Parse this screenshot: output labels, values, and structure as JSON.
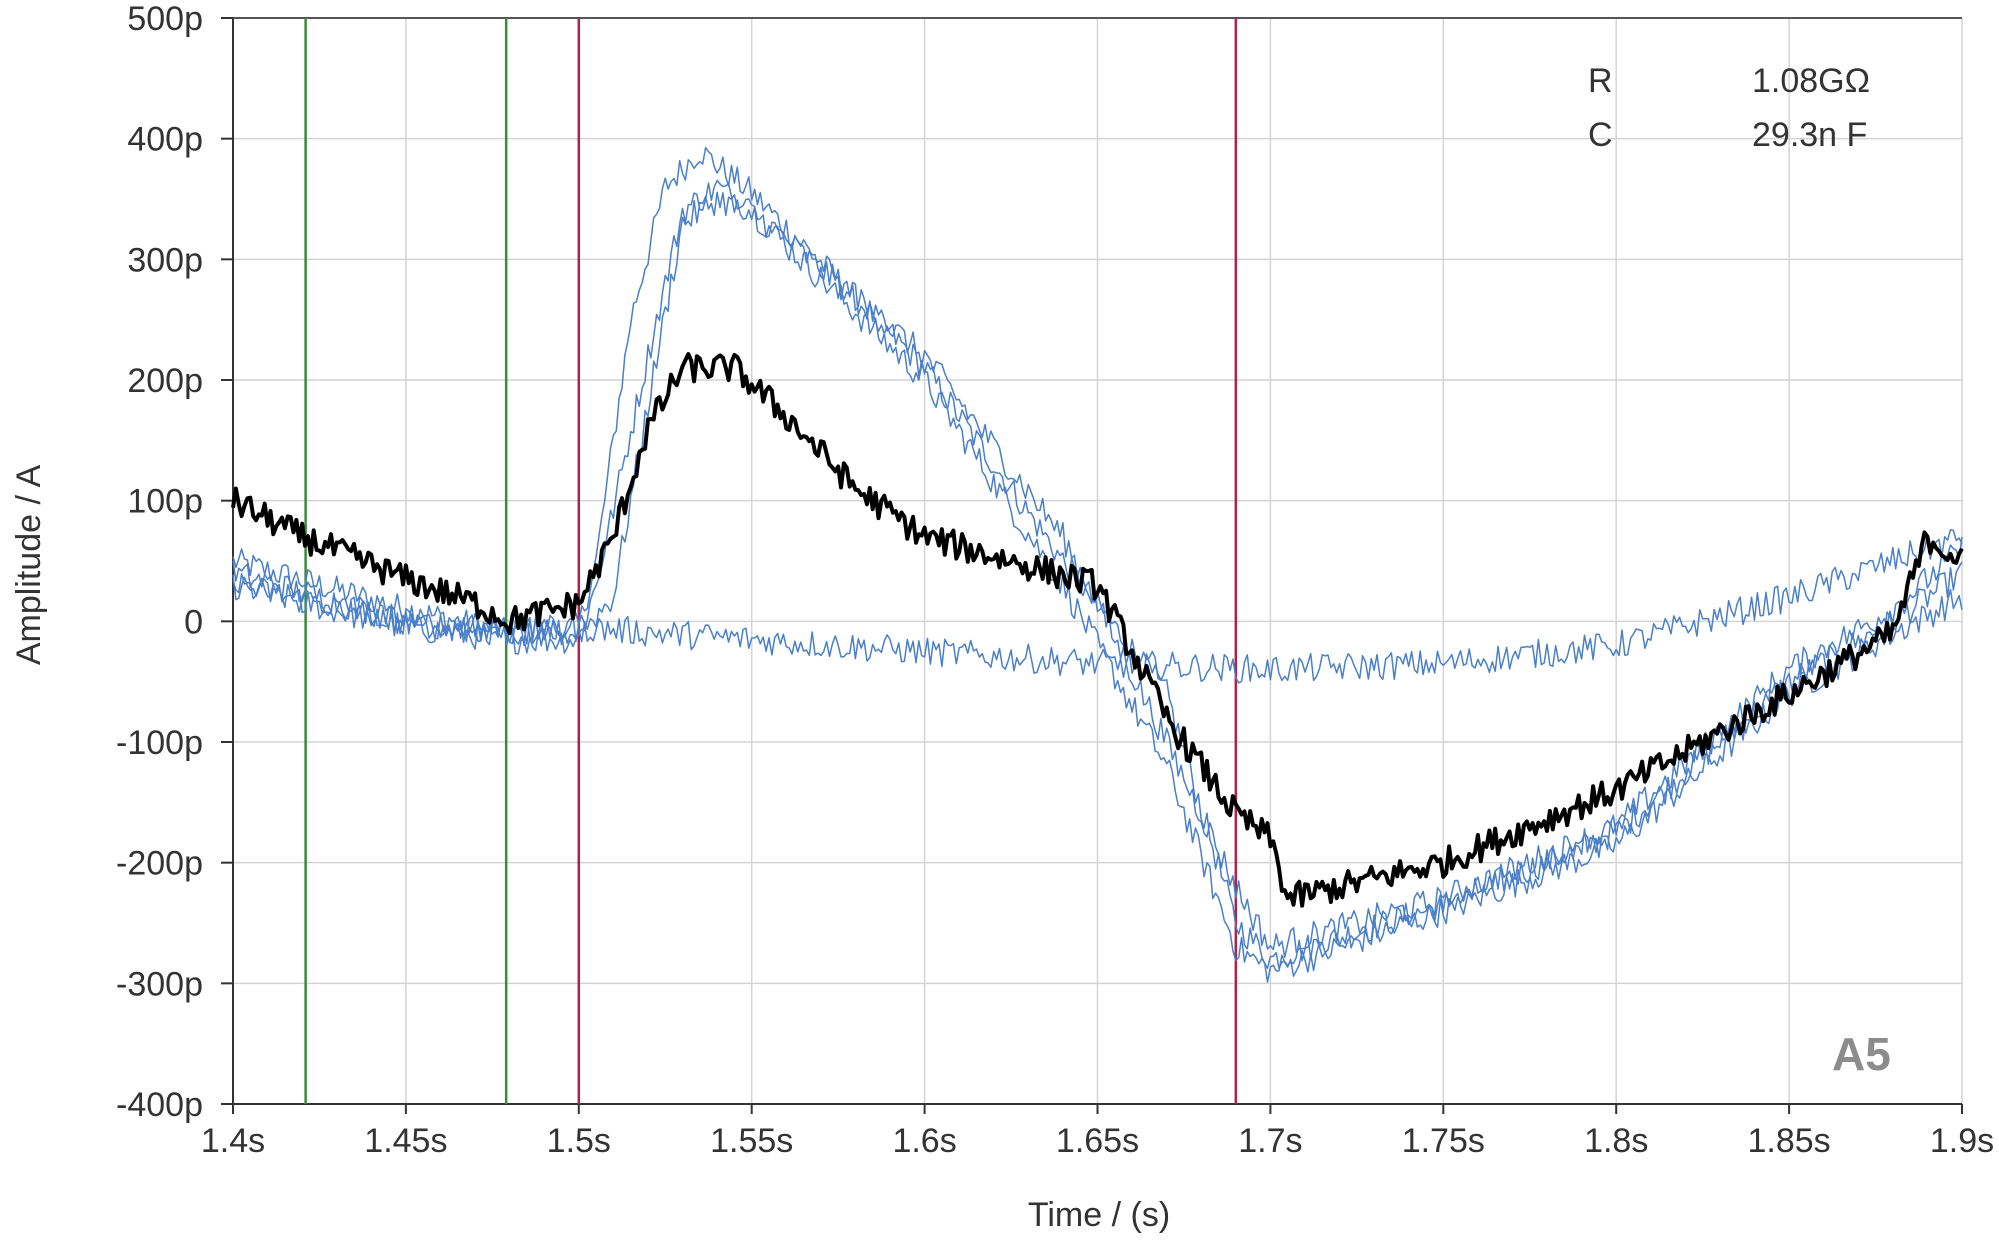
{
  "chart_data": {
    "type": "line",
    "xlabel": "Time / (s)",
    "ylabel": "Amplitude / A",
    "xlim": [
      1.4,
      1.9
    ],
    "ylim": [
      -4e-10,
      5e-10
    ],
    "x_ticks": [
      1.4,
      1.45,
      1.5,
      1.55,
      1.6,
      1.65,
      1.7,
      1.75,
      1.8,
      1.85,
      1.9
    ],
    "x_tick_labels": [
      "1.4s",
      "1.45s",
      "1.5s",
      "1.55s",
      "1.6s",
      "1.65s",
      "1.7s",
      "1.75s",
      "1.8s",
      "1.85s",
      "1.9s"
    ],
    "y_ticks": [
      5e-10,
      4e-10,
      3e-10,
      2e-10,
      1e-10,
      0,
      -1e-10,
      -2e-10,
      -3e-10,
      -4e-10
    ],
    "y_tick_labels": [
      "500p",
      "400p",
      "300p",
      "200p",
      "100p",
      "0",
      "-100p",
      "-200p",
      "-300p",
      "-400p"
    ],
    "grid": true,
    "noise_amplitude": 1.2e-11,
    "series": [
      {
        "color": "#4a7fc9",
        "stroke": 1.5,
        "x": [
          1.4,
          1.45,
          1.48,
          1.5,
          1.505,
          1.515,
          1.525,
          1.535,
          1.55,
          1.6,
          1.64,
          1.67,
          1.69,
          1.7,
          1.75,
          1.8,
          1.85,
          1.88,
          1.9
        ],
        "y": [
          5e-11,
          1e-11,
          -1e-11,
          -5e-12,
          5e-11,
          2.5e-10,
          3.6e-10,
          3.9e-10,
          3.55e-10,
          2.1e-10,
          5e-11,
          -6e-11,
          -2.5e-10,
          -2.8e-10,
          -2.35e-10,
          -1.75e-10,
          -5e-11,
          0,
          4e-11
        ]
      },
      {
        "color": "#4a7fc9",
        "stroke": 1.5,
        "x": [
          1.4,
          1.45,
          1.48,
          1.5,
          1.505,
          1.52,
          1.53,
          1.54,
          1.55,
          1.6,
          1.64,
          1.67,
          1.69,
          1.7,
          1.75,
          1.8,
          1.85,
          1.88,
          1.9
        ],
        "y": [
          3e-11,
          -5e-12,
          -1.5e-11,
          -1.5e-11,
          3e-11,
          2.2e-10,
          3.4e-10,
          3.6e-10,
          3.4e-10,
          2e-10,
          3e-11,
          -1.2e-10,
          -2.7e-10,
          -2.9e-10,
          -2.4e-10,
          -1.85e-10,
          -6e-11,
          -1e-11,
          2e-11
        ]
      },
      {
        "color": "#4a7fc9",
        "stroke": 1.5,
        "x": [
          1.4,
          1.45,
          1.48,
          1.5,
          1.51,
          1.52,
          1.53,
          1.54,
          1.55,
          1.6,
          1.64,
          1.67,
          1.69,
          1.7,
          1.75,
          1.8,
          1.85,
          1.88,
          1.9
        ],
        "y": [
          4e-11,
          0,
          -1e-11,
          -1e-11,
          2e-11,
          1.8e-10,
          3.3e-10,
          3.5e-10,
          3.4e-10,
          2.2e-10,
          7e-11,
          -1e-10,
          -2.2e-10,
          -2.7e-10,
          -2.3e-10,
          -1.7e-10,
          -4e-11,
          1e-11,
          6e-11
        ]
      },
      {
        "color": "#4a7fc9",
        "stroke": 1.5,
        "x": [
          1.4,
          1.45,
          1.48,
          1.5,
          1.55,
          1.6,
          1.65,
          1.7,
          1.75,
          1.8,
          1.85,
          1.9
        ],
        "y": [
          3e-11,
          0,
          -1e-11,
          -5e-12,
          -1.5e-11,
          -2.5e-11,
          -3.5e-11,
          -4e-11,
          -3.5e-11,
          -2e-11,
          2e-11,
          7e-11
        ]
      },
      {
        "color": "#000000",
        "stroke": 4,
        "x": [
          1.4,
          1.42,
          1.45,
          1.47,
          1.48,
          1.5,
          1.51,
          1.52,
          1.53,
          1.545,
          1.56,
          1.58,
          1.6,
          1.65,
          1.67,
          1.69,
          1.7,
          1.705,
          1.75,
          1.8,
          1.85,
          1.88,
          1.89,
          1.9
        ],
        "y": [
          1e-10,
          7e-11,
          3.5e-11,
          1.5e-11,
          0,
          1.5e-11,
          7e-11,
          1.6e-10,
          2.1e-10,
          2.1e-10,
          1.7e-10,
          1.1e-10,
          7e-11,
          3e-11,
          -8e-11,
          -1.6e-10,
          -1.8e-10,
          -2.3e-10,
          -2e-10,
          -1.4e-10,
          -6e-11,
          -1e-11,
          7e-11,
          5e-11
        ]
      }
    ],
    "markers": [
      {
        "x": 1.421,
        "color": "#3a8a3a"
      },
      {
        "x": 1.479,
        "color": "#3a8a3a"
      },
      {
        "x": 1.5,
        "color": "#b0204a"
      },
      {
        "x": 1.69,
        "color": "#b0204a"
      }
    ]
  },
  "info": {
    "r_label": "R",
    "r_value": "1.08GΩ",
    "c_label": "C",
    "c_value": "29.3n F"
  },
  "panel_label": "A5"
}
